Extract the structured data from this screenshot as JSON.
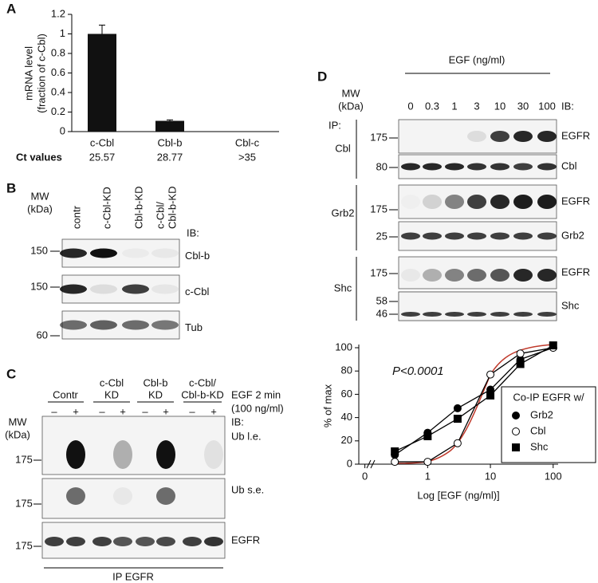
{
  "panel_labels": [
    "A",
    "B",
    "C",
    "D"
  ],
  "chart_data": [
    {
      "type": "bar",
      "ylabel": [
        "mRNA level",
        "(fraction of c-Cbl)"
      ],
      "categories": [
        "c-Cbl",
        "Cbl-b",
        "Cbl-c"
      ],
      "values": [
        1,
        0.11,
        null
      ],
      "errors": [
        0.09,
        0.01,
        null
      ],
      "row_label": "Ct values",
      "ct_values": [
        "25.57",
        "28.77",
        ">35"
      ],
      "color": "#111111",
      "ylim": [
        0,
        1.2
      ],
      "yticks": [
        0,
        0.2,
        0.4,
        0.6,
        0.8,
        1,
        1.2
      ]
    },
    {
      "type": "line",
      "xlabel": "Log [EGF (ng/ml)]",
      "ylabel": "% of max",
      "xscale": "log",
      "x": [
        0.3,
        1,
        3,
        10,
        30,
        100
      ],
      "series": [
        {
          "name": "Grb2",
          "marker": "circle",
          "color": "#000000",
          "values": [
            8,
            27,
            48,
            64,
            90,
            100
          ]
        },
        {
          "name": "Cbl",
          "marker": "circle",
          "color": "#ffffff",
          "values": [
            2,
            2,
            18,
            77,
            95,
            100
          ]
        },
        {
          "name": "Shc",
          "marker": "square",
          "color": "#000000",
          "values": [
            11,
            24,
            39,
            59,
            86,
            102
          ]
        }
      ],
      "xlim": [
        0.08,
        120
      ],
      "xticks": [
        {
          "value": 0.1,
          "label": "0"
        },
        1,
        10,
        100
      ],
      "ylim": [
        0,
        100
      ],
      "yticks": [
        0,
        20,
        40,
        60,
        80,
        100
      ],
      "legend_title": "Co-IP EGFR w/",
      "legend": "lower right",
      "annotation": "P<0.0001"
    }
  ],
  "blot_B": {
    "mw_header": [
      "MW",
      "(kDa)"
    ],
    "lanes": [
      [
        "contr"
      ],
      [
        "c-Cbl-KD"
      ],
      [
        "Cbl-b-KD"
      ],
      [
        "c-Cbl/",
        "Cbl-b-KD"
      ]
    ],
    "ib": "IB:",
    "rows": [
      {
        "mw": "150",
        "name": "Cbl-b"
      },
      {
        "mw": "150",
        "name": "c-Cbl"
      },
      {
        "mw": "60",
        "name": "Tub"
      }
    ]
  },
  "blot_C": {
    "lanes": [
      [
        "Contr"
      ],
      [
        "c-Cbl",
        "KD"
      ],
      [
        "Cbl-b",
        "KD"
      ],
      [
        "c-Cbl/",
        "Cbl-b-KD"
      ]
    ],
    "treatment": [
      "EGF 2 min",
      "(100 ng/ml)"
    ],
    "signs": [
      "–",
      "+",
      "–",
      "+",
      "–",
      "+",
      "–",
      "+"
    ],
    "mw_header": [
      "MW",
      "(kDa)"
    ],
    "ib": "IB:",
    "rows": [
      {
        "mw": "175",
        "name": "Ub l.e."
      },
      {
        "mw": "175",
        "name": "Ub s.e."
      },
      {
        "mw": "175",
        "name": "EGFR"
      }
    ],
    "ip": "IP EGFR"
  },
  "blot_D": {
    "header": "EGF (ng/ml)",
    "mw_header": [
      "MW",
      "(kDa)"
    ],
    "doses": [
      "0",
      "0.3",
      "1",
      "3",
      "10",
      "30",
      "100"
    ],
    "ib": "IB:",
    "ip": "IP:",
    "groups": [
      {
        "name": "Cbl",
        "rows": [
          {
            "mw": [
              "175"
            ],
            "name": "EGFR"
          },
          {
            "mw": [
              "80"
            ],
            "name": "Cbl"
          }
        ]
      },
      {
        "name": "Grb2",
        "rows": [
          {
            "mw": [
              "175"
            ],
            "name": "EGFR"
          },
          {
            "mw": [
              "25"
            ],
            "name": "Grb2"
          }
        ]
      },
      {
        "name": "Shc",
        "rows": [
          {
            "mw": [
              "175"
            ],
            "name": "EGFR"
          },
          {
            "mw": [
              "58",
              "46"
            ],
            "name": "Shc"
          }
        ]
      }
    ]
  }
}
